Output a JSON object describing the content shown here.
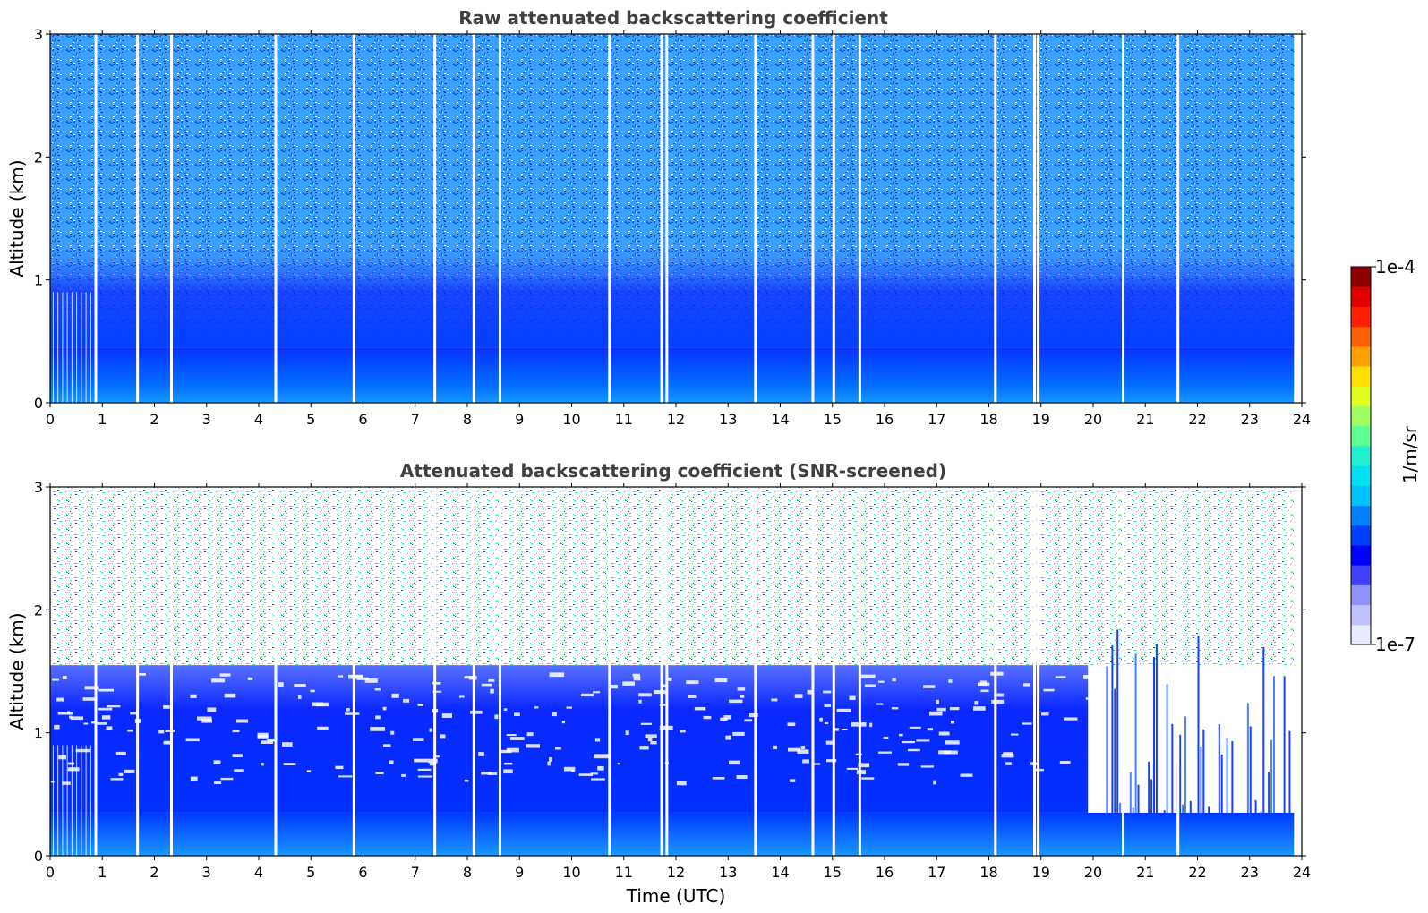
{
  "chart_data": [
    {
      "type": "heatmap",
      "title": "Raw attenuated backscattering coefficient",
      "xlabel": "",
      "ylabel": "Altitude (km)",
      "xlim": [
        0,
        24
      ],
      "ylim": [
        0,
        3
      ],
      "x_ticks": [
        "0",
        "1",
        "2",
        "3",
        "4",
        "5",
        "6",
        "7",
        "8",
        "9",
        "10",
        "11",
        "12",
        "13",
        "14",
        "15",
        "16",
        "17",
        "18",
        "19",
        "20",
        "21",
        "22",
        "23",
        "24"
      ],
      "y_ticks": [
        "0",
        "1",
        "2",
        "3"
      ],
      "grid": false,
      "value_range": [
        1e-07,
        0.0001
      ],
      "colormap": "jet",
      "description_of_pattern": {
        "near_surface_layer_top_km": 0.45,
        "data_end_time_utc": 23.85,
        "gap_times_utc": [
          0.85,
          1.65,
          2.3,
          4.3,
          5.8,
          7.35,
          8.1,
          8.6,
          10.7,
          11.7,
          11.8,
          13.5,
          14.6,
          15.0,
          15.5,
          18.1,
          18.85,
          18.92,
          20.55,
          21.6
        ]
      }
    },
    {
      "type": "heatmap",
      "title": "Attenuated backscattering coefficient (SNR-screened)",
      "xlabel": "Time (UTC)",
      "ylabel": "Altitude (km)",
      "xlim": [
        0,
        24
      ],
      "ylim": [
        0,
        3
      ],
      "x_ticks": [
        "0",
        "1",
        "2",
        "3",
        "4",
        "5",
        "6",
        "7",
        "8",
        "9",
        "10",
        "11",
        "12",
        "13",
        "14",
        "15",
        "16",
        "17",
        "18",
        "19",
        "20",
        "21",
        "22",
        "23",
        "24"
      ],
      "y_ticks": [
        "0",
        "1",
        "2",
        "3"
      ],
      "grid": false,
      "value_range": [
        1e-07,
        0.0001
      ],
      "colormap": "jet",
      "description_of_pattern": {
        "boundary_layer_top_km": 1.55,
        "sparse_region_start_utc": 19.9,
        "sparse_region_low_layer_top_km": 0.3,
        "data_end_time_utc": 23.85,
        "gap_times_utc": [
          0.85,
          1.65,
          2.3,
          4.3,
          5.8,
          7.35,
          8.1,
          8.6,
          10.7,
          11.7,
          11.8,
          13.5,
          14.6,
          15.0,
          15.5,
          18.1,
          18.85,
          18.92,
          20.55,
          21.6
        ]
      }
    }
  ],
  "colorbar": {
    "label": "1/m/sr",
    "max_label": "1e-4",
    "min_label": "1e-7",
    "colors": [
      "#eaeaff",
      "#c0c0ff",
      "#9090ff",
      "#4040ff",
      "#0000ff",
      "#0040ff",
      "#0080ff",
      "#00c0ff",
      "#00e0f0",
      "#20f0d0",
      "#60ff90",
      "#a0ff60",
      "#e0ff20",
      "#ffe000",
      "#ffa000",
      "#ff6000",
      "#ff2000",
      "#e00000",
      "#900000"
    ]
  }
}
